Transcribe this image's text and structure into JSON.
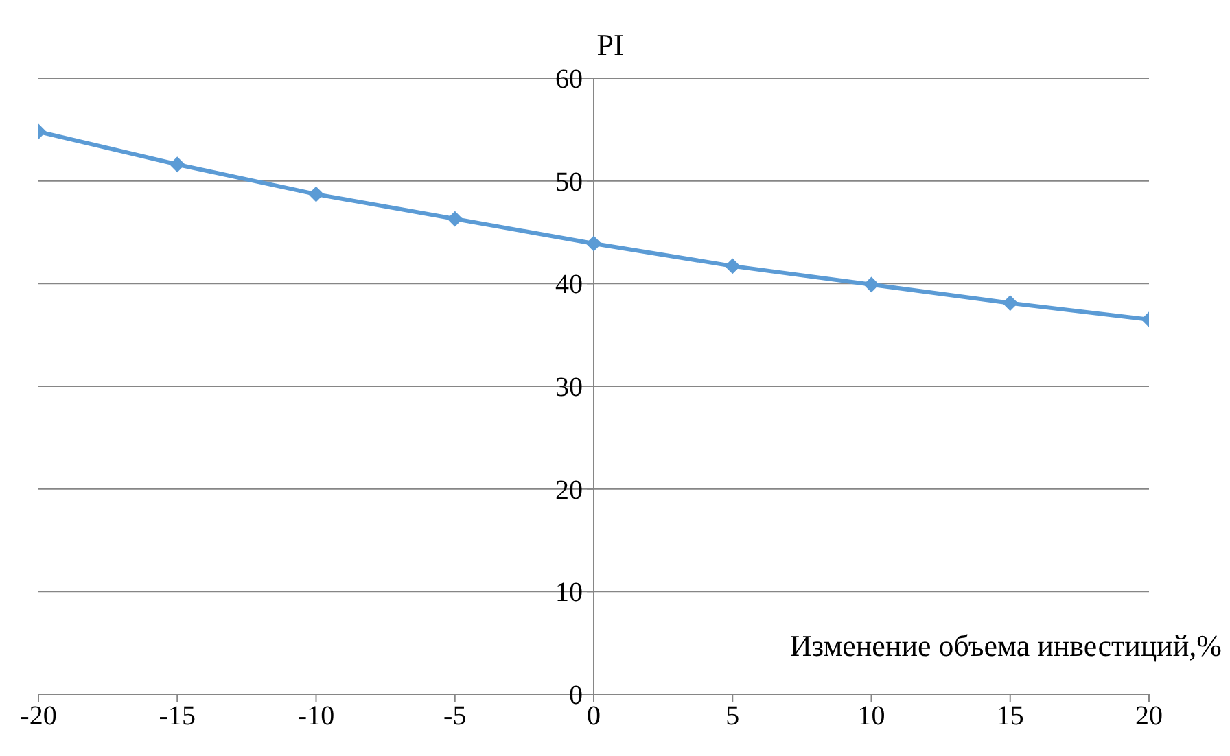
{
  "chart_data": {
    "type": "line",
    "xlabel": "Изменение объема инвестиций,%",
    "ylabel": "PI",
    "x": [
      -20,
      -15,
      -10,
      -5,
      0,
      5,
      10,
      15,
      20
    ],
    "series": [
      {
        "color": "#5b9bd5",
        "values": [
          54.8,
          51.6,
          48.7,
          46.3,
          43.9,
          41.7,
          39.9,
          38.1,
          36.5
        ]
      }
    ],
    "xlim": [
      -20,
      20
    ],
    "xticks": [
      -20,
      -15,
      -10,
      -5,
      0,
      5,
      10,
      15,
      20
    ],
    "ylim": [
      0,
      60
    ],
    "yticks": [
      0,
      10,
      20,
      30,
      40,
      50,
      60
    ],
    "grid": "y",
    "marker": "diamond",
    "line_style": "solid",
    "legend": false
  }
}
